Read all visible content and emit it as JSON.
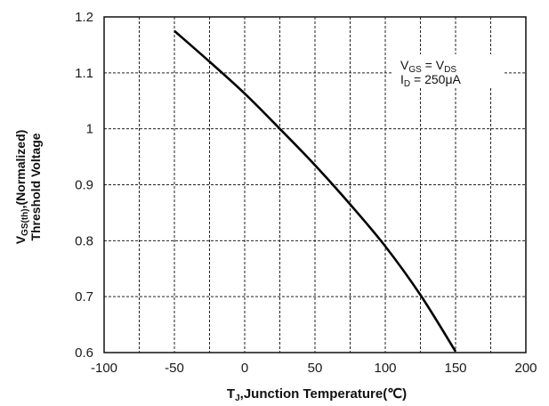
{
  "chart_data": {
    "type": "line",
    "xlabel": {
      "main": "T",
      "sub": "J",
      "rest": ",Junction Temperature(℃)"
    },
    "ylabel": {
      "line1_main": "V",
      "line1_sub": "GS(th)",
      "line1_rest": ",(Normalized)",
      "line2": "Threshold Voltage"
    },
    "xlim": [
      -100,
      200
    ],
    "ylim": [
      0.6,
      1.2
    ],
    "xticks": [
      -100,
      -50,
      0,
      50,
      100,
      150,
      200
    ],
    "xtick_labels": [
      "-100",
      "-50",
      "0",
      "50",
      "100",
      "150",
      "200"
    ],
    "yticks": [
      0.6,
      0.7,
      0.8,
      0.9,
      1.0,
      1.1,
      1.2
    ],
    "ytick_labels": [
      "0.6",
      "0.7",
      "0.8",
      "0.9",
      "1",
      "1.1",
      "1.2"
    ],
    "grid": true,
    "grid_style": "dashed",
    "annotation": {
      "line1": {
        "a_main": "V",
        "a_sub": "GS",
        "mid": " = V",
        "b_sub": "DS"
      },
      "line2": {
        "a_main": "I",
        "a_sub": "D",
        "rest": " = 250μA"
      }
    },
    "series": [
      {
        "x": [
          -50,
          -25,
          0,
          25,
          50,
          75,
          100,
          125,
          150
        ],
        "y": [
          1.175,
          1.12,
          1.063,
          1.0,
          0.935,
          0.865,
          0.79,
          0.703,
          0.602
        ]
      }
    ]
  }
}
